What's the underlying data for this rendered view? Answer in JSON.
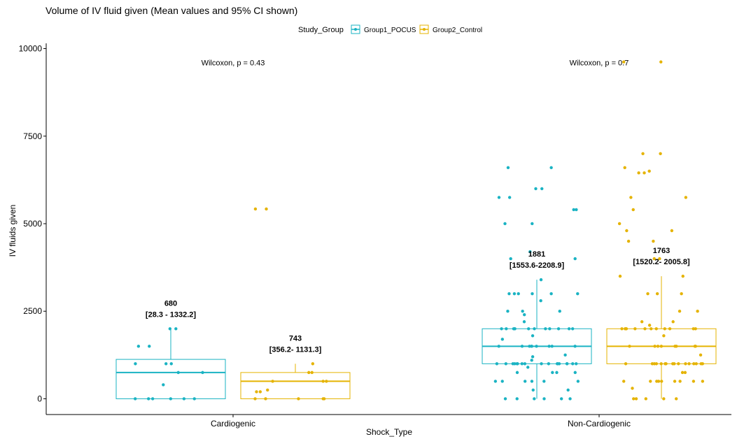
{
  "chart_data": {
    "type": "boxplot",
    "title": "Volume of IV fluid given (Mean values and 95% CI shown)",
    "xlabel": "Shock_Type",
    "ylabel": "IV fluids given",
    "categories": [
      "Cardiogenic",
      "Non-Cardiogenic"
    ],
    "ylim": [
      -450,
      10150
    ],
    "yticks": [
      0,
      2500,
      5000,
      7500,
      10000
    ],
    "grid": false,
    "legend": {
      "title": "Study_Group",
      "position": "top",
      "entries": [
        "Group1_POCUS",
        "Group2_Control"
      ]
    },
    "colors": {
      "Group1_POCUS": "#1ab3c3",
      "Group2_Control": "#e5b300"
    },
    "series": [
      {
        "name": "Group1_POCUS",
        "boxes": [
          {
            "category": "Cardiogenic",
            "q1": 0,
            "median": 750,
            "q3": 1125,
            "whisker_low": 0,
            "whisker_high": 2000,
            "mean_label": "680",
            "ci_label": "[28.3 - 1332.2]",
            "points": [
              2000,
              2000,
              1500,
              1500,
              1000,
              1000,
              1000,
              750,
              750,
              400,
              0,
              0,
              0,
              0,
              0,
              0
            ]
          },
          {
            "category": "Non-Cardiogenic",
            "q1": 1000,
            "median": 1500,
            "q3": 2000,
            "whisker_low": 0,
            "whisker_high": 3400,
            "mean_label": "1881",
            "ci_label": "[1553.6-2208.9]",
            "points": [
              6600,
              6600,
              6000,
              6000,
              5750,
              5750,
              5400,
              5400,
              5000,
              5000,
              4000,
              4000,
              4200,
              3400,
              3000,
              3000,
              3000,
              3000,
              3000,
              3000,
              2800,
              2500,
              2500,
              2500,
              2400,
              2200,
              2000,
              2000,
              2000,
              2000,
              2000,
              2000,
              2000,
              2000,
              2000,
              2000,
              2000,
              2000,
              1800,
              1700,
              1500,
              1500,
              1500,
              1500,
              1500,
              1500,
              1500,
              1500,
              1500,
              1250,
              1200,
              1100,
              1000,
              1000,
              1000,
              1000,
              1000,
              1000,
              1000,
              1000,
              1000,
              1000,
              1000,
              1000,
              1000,
              1000,
              1000,
              1000,
              1000,
              900,
              750,
              750,
              750,
              750,
              500,
              500,
              500,
              500,
              500,
              500,
              250,
              250,
              0,
              0,
              0,
              0,
              0,
              0
            ]
          }
        ]
      },
      {
        "name": "Group2_Control",
        "boxes": [
          {
            "category": "Cardiogenic",
            "q1": 0,
            "median": 500,
            "q3": 750,
            "whisker_low": 0,
            "whisker_high": 1000,
            "mean_label": "743",
            "ci_label": "[356.2- 1131.3]",
            "points": [
              5420,
              5420,
              1000,
              750,
              750,
              500,
              500,
              500,
              250,
              200,
              200,
              0,
              0,
              0,
              0,
              0
            ]
          },
          {
            "category": "Non-Cardiogenic",
            "q1": 1000,
            "median": 1500,
            "q3": 2000,
            "whisker_low": 0,
            "whisker_high": 3500,
            "mean_label": "1763",
            "ci_label": "[1520.2- 2005.8]",
            "points": [
              9620,
              9620,
              7000,
              7000,
              6600,
              6500,
              6450,
              6450,
              5750,
              5750,
              5400,
              5000,
              4800,
              4800,
              4500,
              4500,
              4000,
              4000,
              3500,
              3500,
              3000,
              3000,
              3000,
              2500,
              2500,
              2200,
              2200,
              2100,
              2000,
              2000,
              2000,
              2000,
              2000,
              2000,
              2000,
              2000,
              2000,
              2000,
              2000,
              2000,
              1800,
              1500,
              1500,
              1500,
              1500,
              1500,
              1500,
              1500,
              1500,
              1250,
              1000,
              1000,
              1000,
              1000,
              1000,
              1000,
              1000,
              1000,
              1000,
              1000,
              1000,
              1000,
              1000,
              1000,
              1000,
              1000,
              750,
              750,
              500,
              500,
              500,
              500,
              500,
              500,
              500,
              500,
              500,
              300,
              0,
              0,
              0,
              0,
              0
            ]
          }
        ]
      }
    ],
    "annotations": [
      {
        "category": "Cardiogenic",
        "text": "Wilcoxon, p = 0.43",
        "y": 9600
      },
      {
        "category": "Non-Cardiogenic",
        "text": "Wilcoxon, p = 0.7",
        "y": 9600
      }
    ]
  }
}
